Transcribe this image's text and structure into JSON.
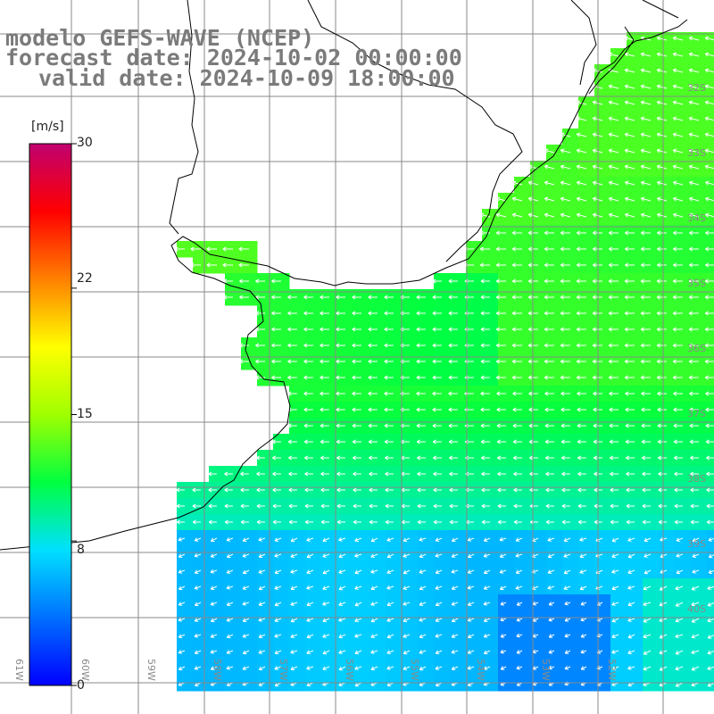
{
  "title": {
    "line1": "modelo GEFS-WAVE (NCEP)",
    "line2": "forecast date: 2024-10-02 00:00:00",
    "line3": "valid date: 2024-10-09 18:00:00"
  },
  "colorbar": {
    "unit": "[m/s]",
    "min": 0,
    "max": 30,
    "tick_labels": [
      "30",
      "22",
      "15",
      "8",
      "0"
    ],
    "tick_values": [
      30,
      22,
      15,
      8,
      0
    ],
    "colors": [
      "#0000ff",
      "#0070ff",
      "#00e0ff",
      "#00ff40",
      "#a0ff00",
      "#ffff00",
      "#ff8000",
      "#ff0000",
      "#c00070"
    ]
  },
  "map": {
    "variable": "wind speed",
    "wind_direction_general": "from east to west",
    "lat_labels": [
      "32S",
      "33S",
      "34S",
      "35S",
      "36S",
      "37S",
      "38S",
      "39S",
      "40S"
    ],
    "lon_labels": [
      "61W",
      "60W",
      "59W",
      "58W",
      "57W",
      "56W",
      "55W",
      "54W",
      "53W",
      "52W"
    ],
    "land_color": "#ffffff",
    "grid_color": "#888888",
    "coast_color": "#000000",
    "arrow_color": "#ffffff"
  }
}
